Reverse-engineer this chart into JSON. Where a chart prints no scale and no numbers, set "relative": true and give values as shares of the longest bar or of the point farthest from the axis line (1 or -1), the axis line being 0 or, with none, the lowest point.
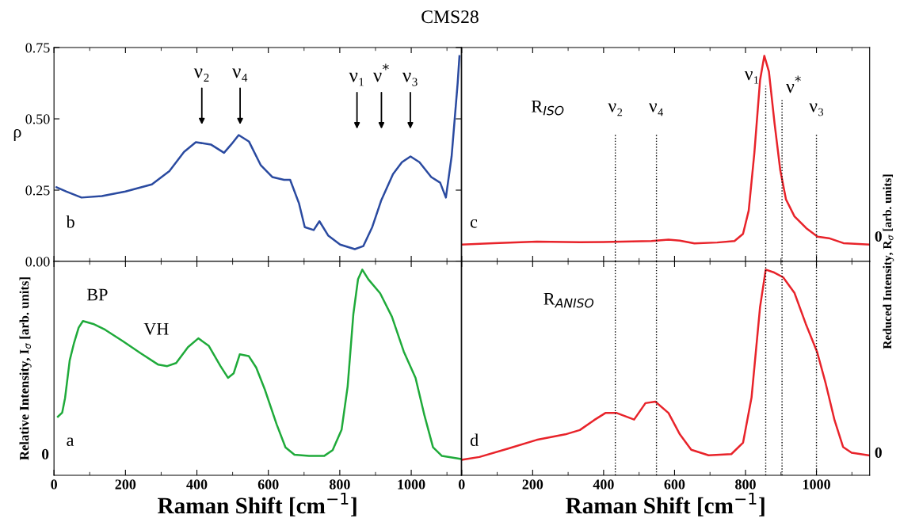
{
  "chart_data": [
    {
      "type": "line",
      "title": "CMS28",
      "ylabel": "ρ",
      "xlim": [
        0,
        1140
      ],
      "xticks": [
        0,
        200,
        400,
        600,
        800,
        1000
      ],
      "ylim": [
        0,
        0.75
      ],
      "yticks": [
        {
          "value": 0,
          "label": "0.00"
        },
        {
          "value": 0.25,
          "label": "0.25"
        },
        {
          "value": 0.5,
          "label": "0.50"
        },
        {
          "value": 0.75,
          "label": "0.75"
        }
      ],
      "tick_labels": "y",
      "grid": false,
      "legend": false,
      "series": [
        {
          "color": "#2a4aa0",
          "x": [
            7,
            35,
            77,
            134,
            200,
            274,
            323,
            364,
            397,
            439,
            476,
            496,
            517,
            546,
            579,
            611,
            644,
            661,
            686,
            702,
            727,
            743,
            768,
            801,
            842,
            866,
            891,
            916,
            949,
            974,
            998,
            1023,
            1056,
            1081,
            1097,
            1113,
            1130,
            1135
          ],
          "values": [
            0.26,
            0.245,
            0.224,
            0.229,
            0.245,
            0.27,
            0.317,
            0.384,
            0.418,
            0.41,
            0.381,
            0.41,
            0.443,
            0.42,
            0.337,
            0.296,
            0.286,
            0.286,
            0.203,
            0.12,
            0.11,
            0.141,
            0.09,
            0.059,
            0.043,
            0.054,
            0.121,
            0.214,
            0.306,
            0.348,
            0.368,
            0.348,
            0.296,
            0.276,
            0.224,
            0.368,
            0.626,
            0.72
          ]
        }
      ],
      "annotations": [
        "b",
        "ν₂",
        "ν₄",
        "ν₁",
        "ν$^{*}$",
        "ν₃"
      ]
    },
    {
      "type": "line",
      "relative": true,
      "xlim": [
        0,
        1150
      ],
      "xticks": [
        0,
        200,
        400,
        600,
        800,
        1000
      ],
      "tick_labels": false,
      "grid": false,
      "legend": false,
      "series": [
        {
          "color": "#e8232a",
          "x": [
            0,
            91,
            212,
            333,
            454,
            535,
            583,
            615,
            656,
            720,
            769,
            793,
            809,
            825,
            841,
            853,
            866,
            882,
            898,
            914,
            938,
            971,
            1003,
            1035,
            1076,
            1148
          ],
          "values": [
            0.082,
            0.089,
            0.096,
            0.093,
            0.096,
            0.099,
            0.106,
            0.101,
            0.088,
            0.092,
            0.099,
            0.134,
            0.247,
            0.528,
            0.881,
            1.0,
            0.923,
            0.67,
            0.444,
            0.302,
            0.219,
            0.162,
            0.12,
            0.113,
            0.089,
            0.082
          ]
        }
      ],
      "ref_lines": [
        {
          "axis": "x",
          "value": 433,
          "color": "#000000",
          "line_style": "dotted"
        },
        {
          "axis": "x",
          "value": 549,
          "color": "#000000",
          "line_style": "dotted"
        },
        {
          "axis": "x",
          "value": 857,
          "color": "#000000",
          "line_style": "dotted"
        },
        {
          "axis": "x",
          "value": 903,
          "color": "#000000",
          "line_style": "dotted"
        },
        {
          "axis": "x",
          "value": 1000,
          "color": "#000000",
          "line_style": "dotted"
        }
      ],
      "annotations": [
        "c",
        "R$_{ISO}$",
        "ν₂",
        "ν₄",
        "ν₁",
        "ν$^{*}$",
        "ν₃",
        "0"
      ]
    },
    {
      "type": "line",
      "relative": true,
      "xlabel": "Raman Shift [cm$^{−1}$]",
      "ylabel": "Relative Intensity, I$_{σ}$ [arb. units]",
      "xlim": [
        0,
        1140
      ],
      "xticks": [
        0,
        200,
        400,
        600,
        800,
        1000
      ],
      "tick_labels": "x",
      "grid": false,
      "legend": false,
      "series": [
        {
          "color": "#1faa3a",
          "x": [
            11,
            23,
            31,
            44,
            56,
            69,
            81,
            110,
            143,
            193,
            242,
            292,
            317,
            342,
            375,
            404,
            433,
            466,
            487,
            503,
            520,
            545,
            566,
            590,
            623,
            648,
            673,
            714,
            756,
            780,
            805,
            822,
            838,
            851,
            863,
            880,
            913,
            946,
            979,
            1012,
            1037,
            1061,
            1086,
            1138
          ],
          "values": [
            0.285,
            0.305,
            0.376,
            0.559,
            0.643,
            0.718,
            0.75,
            0.736,
            0.708,
            0.652,
            0.594,
            0.538,
            0.531,
            0.546,
            0.623,
            0.666,
            0.63,
            0.531,
            0.474,
            0.496,
            0.588,
            0.58,
            0.524,
            0.418,
            0.249,
            0.136,
            0.1,
            0.094,
            0.094,
            0.122,
            0.221,
            0.432,
            0.784,
            0.953,
            1.0,
            0.953,
            0.885,
            0.771,
            0.602,
            0.474,
            0.291,
            0.136,
            0.094,
            0.08
          ]
        }
      ],
      "annotations": [
        "a",
        "BP",
        "VH",
        "0"
      ]
    },
    {
      "type": "line",
      "relative": true,
      "xlabel": "Raman Shift [cm$^{−1}$]",
      "ylabel": "Reduced Intensity, R$_{σ}$ [arb. units]",
      "xlim": [
        0,
        1150
      ],
      "xticks": [
        0,
        200,
        400,
        600,
        800,
        1000
      ],
      "tick_labels": "x",
      "grid": false,
      "legend": false,
      "series": [
        {
          "color": "#e8232a",
          "x": [
            2,
            50,
            131,
            211,
            292,
            333,
            373,
            405,
            437,
            486,
            518,
            546,
            583,
            615,
            647,
            696,
            760,
            793,
            817,
            841,
            857,
            881,
            906,
            938,
            970,
            1002,
            1026,
            1051,
            1075,
            1099,
            1148
          ],
          "values": [
            0.076,
            0.089,
            0.13,
            0.172,
            0.199,
            0.22,
            0.268,
            0.303,
            0.303,
            0.271,
            0.351,
            0.358,
            0.303,
            0.199,
            0.124,
            0.097,
            0.103,
            0.158,
            0.378,
            0.818,
            1.0,
            0.986,
            0.963,
            0.887,
            0.736,
            0.599,
            0.447,
            0.268,
            0.138,
            0.11,
            0.097
          ]
        }
      ],
      "ref_lines": [
        {
          "axis": "x",
          "value": 433,
          "color": "#000000",
          "line_style": "dotted"
        },
        {
          "axis": "x",
          "value": 549,
          "color": "#000000",
          "line_style": "dotted"
        },
        {
          "axis": "x",
          "value": 857,
          "color": "#000000",
          "line_style": "dotted"
        },
        {
          "axis": "x",
          "value": 903,
          "color": "#000000",
          "line_style": "dotted"
        },
        {
          "axis": "x",
          "value": 1000,
          "color": "#000000",
          "line_style": "dotted"
        }
      ],
      "annotations": [
        "d",
        "R$_{ANISO}$",
        "0"
      ]
    }
  ]
}
